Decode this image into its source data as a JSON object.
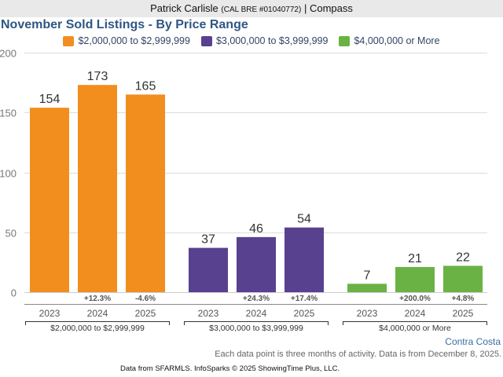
{
  "header": {
    "agent_name": "Patrick Carlisle",
    "license": "(CAL BRE #01040772)",
    "separator": "|",
    "company": "Compass"
  },
  "footer": {
    "region": "Contra Costa",
    "note": "Each data point is three months of activity. Data is from December 8, 2025.",
    "source": "Data from SFARMLS. InfoSparks © 2025 ShowingTime Plus, LLC."
  },
  "chart_data": {
    "type": "bar",
    "title": "November Sold Listings - By Price Range",
    "xlabel": "",
    "ylabel": "",
    "ylim": [
      0,
      200
    ],
    "yticks": [
      0,
      50,
      100,
      150,
      200
    ],
    "grid": true,
    "legend_placement": "top-center",
    "groups": [
      {
        "name": "$2,000,000 to $2,999,999",
        "color": "#f28e1e",
        "categories": [
          "2023",
          "2024",
          "2025"
        ],
        "values": [
          154,
          173,
          165
        ],
        "changes": [
          "",
          "+12.3%",
          "-4.6%"
        ]
      },
      {
        "name": "$3,000,000 to $3,999,999",
        "color": "#58418e",
        "categories": [
          "2023",
          "2024",
          "2025"
        ],
        "values": [
          37,
          46,
          54
        ],
        "changes": [
          "",
          "+24.3%",
          "+17.4%"
        ]
      },
      {
        "name": "$4,000,000 or More",
        "color": "#6ab243",
        "categories": [
          "2023",
          "2024",
          "2025"
        ],
        "values": [
          7,
          21,
          22
        ],
        "changes": [
          "",
          "+200.0%",
          "+4.8%"
        ]
      }
    ]
  }
}
